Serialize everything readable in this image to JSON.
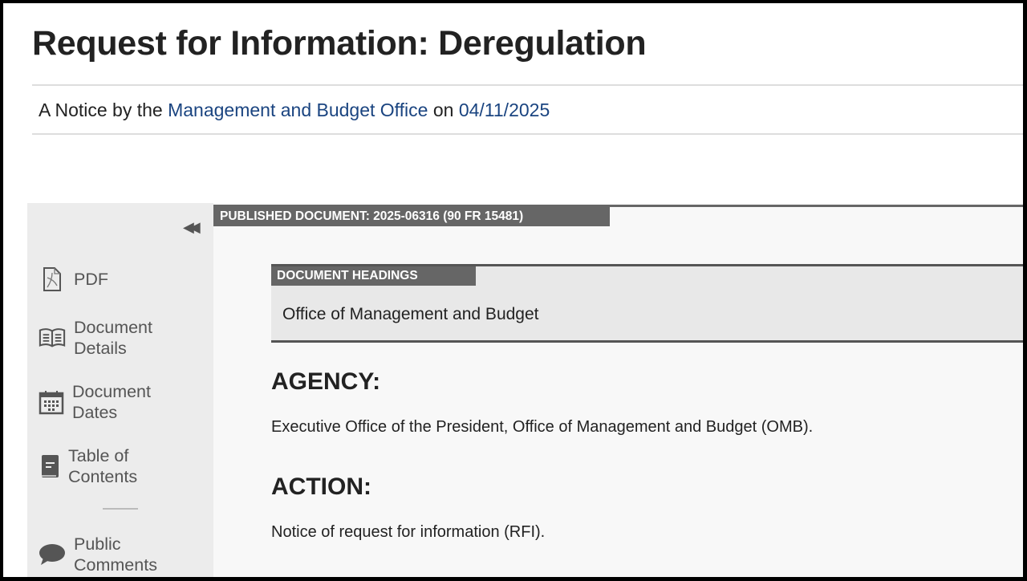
{
  "title": "Request for Information: Deregulation",
  "byline": {
    "prefix": "A Notice by the",
    "agency": "Management and Budget Office",
    "on": "on",
    "date": "04/11/2025"
  },
  "sidebar": {
    "collapse_icon": "double-chevron-left",
    "items": [
      {
        "label": "PDF",
        "icon": "pdf-icon"
      },
      {
        "label": "Document Details",
        "icon": "open-book-icon"
      },
      {
        "label": "Document Dates",
        "icon": "calendar-icon"
      },
      {
        "label": "Table of Contents",
        "icon": "book-icon"
      },
      {
        "label": "Public Comments",
        "icon": "speech-bubble-icon"
      }
    ]
  },
  "main": {
    "published_label": "PUBLISHED DOCUMENT: 2025-06316 (90 FR 15481)",
    "headings_label": "DOCUMENT HEADINGS",
    "headings_text": "Office of Management and Budget",
    "agency_heading": "AGENCY:",
    "agency_text": "Executive Office of the President, Office of Management and Budget (OMB).",
    "action_heading": "ACTION:",
    "action_text": "Notice of request for information (RFI)."
  },
  "colors": {
    "link": "#1a4480",
    "tab": "#666666",
    "sidebar_bg": "#ececec"
  }
}
